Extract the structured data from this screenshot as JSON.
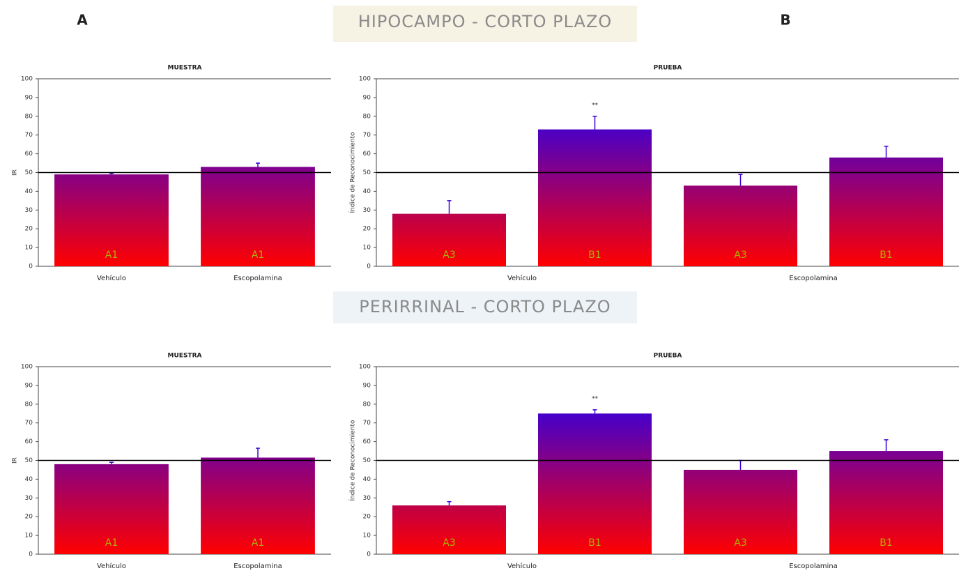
{
  "panel_labels": [
    "A",
    "B"
  ],
  "section_titles": [
    "HIPOCAMPO - CORTO PLAZO",
    "PERIRRINAL - CORTO PLAZO"
  ],
  "chart_data": [
    {
      "type": "bar",
      "title": "MUESTRA",
      "y_label": "IR",
      "categories": [
        "A1",
        "A1"
      ],
      "groups": [
        "Vehículo",
        "Escopolamina"
      ],
      "values": [
        49,
        53
      ],
      "errors": [
        0.5,
        2
      ],
      "value_annotations": [
        null,
        null
      ],
      "ylim": [
        0,
        100
      ],
      "yticks": [
        0,
        10,
        20,
        30,
        40,
        50,
        60,
        70,
        80,
        90,
        100
      ],
      "reference_line": 50,
      "colors": [
        "#ff0000",
        "#3a00d8"
      ]
    },
    {
      "type": "bar",
      "title": "PRUEBA",
      "y_label": "Índice de Reconocimiento",
      "categories": [
        "A3",
        "B1",
        "A3",
        "B1"
      ],
      "groups": [
        "Vehículo",
        "Escopolamina"
      ],
      "values": [
        28,
        73,
        43,
        58
      ],
      "errors": [
        7,
        7,
        6,
        6
      ],
      "value_annotations": [
        null,
        "**",
        null,
        null
      ],
      "ylim": [
        0,
        100
      ],
      "yticks": [
        0,
        10,
        20,
        30,
        40,
        50,
        60,
        70,
        80,
        90,
        100
      ],
      "reference_line": 50,
      "colors": [
        "#ff0000",
        "#3a00d8"
      ]
    },
    {
      "type": "bar",
      "title": "MUESTRA",
      "y_label": "IR",
      "categories": [
        "A1",
        "A1"
      ],
      "groups": [
        "Vehículo",
        "Escopolamina"
      ],
      "values": [
        48,
        51.5
      ],
      "errors": [
        1,
        5
      ],
      "value_annotations": [
        null,
        null
      ],
      "ylim": [
        0,
        100
      ],
      "yticks": [
        0,
        10,
        20,
        30,
        40,
        50,
        60,
        70,
        80,
        90,
        100
      ],
      "reference_line": 50,
      "colors": [
        "#ff0000",
        "#3a00d8"
      ]
    },
    {
      "type": "bar",
      "title": "PRUEBA",
      "y_label": "Índice de Reconocimiento",
      "categories": [
        "A3",
        "B1",
        "A3",
        "B1"
      ],
      "groups": [
        "Vehículo",
        "Escopolamina"
      ],
      "values": [
        26,
        75,
        45,
        55
      ],
      "errors": [
        2,
        2,
        5,
        6
      ],
      "value_annotations": [
        null,
        "**",
        null,
        null
      ],
      "ylim": [
        0,
        100
      ],
      "yticks": [
        0,
        10,
        20,
        30,
        40,
        50,
        60,
        70,
        80,
        90,
        100
      ],
      "reference_line": 50,
      "colors": [
        "#ff0000",
        "#3a00d8"
      ]
    }
  ]
}
